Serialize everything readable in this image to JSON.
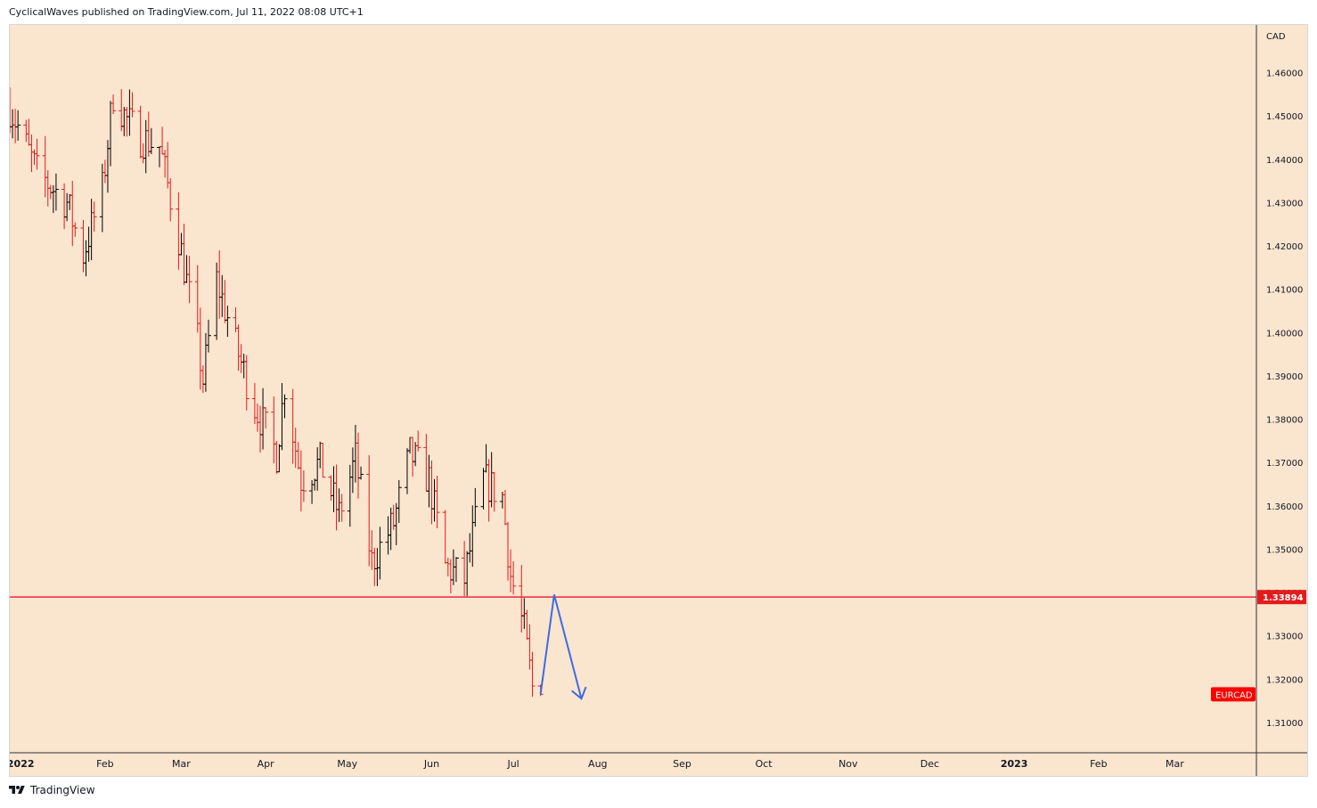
{
  "header": {
    "publisher_line": "CyclicalWaves published on TradingView.com, Jul 11, 2022 08:08 UTC+1"
  },
  "footer": {
    "brand": "TradingView",
    "logo_icon": "tradingview-logo-icon"
  },
  "colors": {
    "background": "#fae5cf",
    "up_bar": "#000000",
    "down_bar": "#e31b1b",
    "support_line": "#f23645",
    "projection": "#3d6be0",
    "price_tag_bg": "#e31b1b",
    "symbol_tag_bg": "#ff0000"
  },
  "chart_data": {
    "type": "ohlc",
    "symbol": "EURCAD",
    "currency": "CAD",
    "x_labels": [
      "2022",
      "Feb",
      "Mar",
      "Apr",
      "May",
      "Jun",
      "Jul",
      "Aug",
      "Sep",
      "Oct",
      "Nov",
      "Dec",
      "2023",
      "Feb",
      "Mar"
    ],
    "x_label_dates": [
      "2022-01-01",
      "2022-02-01",
      "2022-03-01",
      "2022-04-01",
      "2022-05-01",
      "2022-06-01",
      "2022-07-01",
      "2022-08-01",
      "2022-09-01",
      "2022-10-01",
      "2022-11-01",
      "2022-12-01",
      "2023-01-01",
      "2023-02-01",
      "2023-03-01"
    ],
    "bold_x_labels": [
      "2022",
      "2023"
    ],
    "x_range": [
      "2021-12-28",
      "2023-03-31"
    ],
    "y_ticks": [
      "1.31000",
      "1.32000",
      "1.33000",
      "1.34000",
      "1.35000",
      "1.36000",
      "1.37000",
      "1.38000",
      "1.39000",
      "1.40000",
      "1.41000",
      "1.42000",
      "1.43000",
      "1.44000",
      "1.45000",
      "1.46000"
    ],
    "y_tick_values": [
      1.31,
      1.32,
      1.33,
      1.34,
      1.35,
      1.36,
      1.37,
      1.38,
      1.39,
      1.4,
      1.41,
      1.42,
      1.43,
      1.44,
      1.45,
      1.46
    ],
    "ylim": [
      1.303,
      1.471
    ],
    "support_level": {
      "value": 1.33894,
      "label": "1.33894"
    },
    "symbol_tag": {
      "label": "EURCAD",
      "value": 1.3165
    },
    "projection_path": [
      {
        "date": "2022-07-11",
        "price": 1.3165
      },
      {
        "date": "2022-07-16",
        "price": 1.3395
      },
      {
        "date": "2022-07-26",
        "price": 1.3155
      }
    ],
    "anchor_points": [
      {
        "date": "2021-12-28",
        "price": 1.452
      },
      {
        "date": "2022-01-07",
        "price": 1.437
      },
      {
        "date": "2022-01-18",
        "price": 1.43
      },
      {
        "date": "2022-01-24",
        "price": 1.418
      },
      {
        "date": "2022-01-31",
        "price": 1.433
      },
      {
        "date": "2022-02-04",
        "price": 1.455
      },
      {
        "date": "2022-02-09",
        "price": 1.449
      },
      {
        "date": "2022-02-14",
        "price": 1.445
      },
      {
        "date": "2022-02-21",
        "price": 1.443
      },
      {
        "date": "2022-02-28",
        "price": 1.422
      },
      {
        "date": "2022-03-07",
        "price": 1.398
      },
      {
        "date": "2022-03-09",
        "price": 1.389
      },
      {
        "date": "2022-03-14",
        "price": 1.412
      },
      {
        "date": "2022-03-21",
        "price": 1.397
      },
      {
        "date": "2022-03-28",
        "price": 1.383
      },
      {
        "date": "2022-04-05",
        "price": 1.372
      },
      {
        "date": "2022-04-08",
        "price": 1.388
      },
      {
        "date": "2022-04-14",
        "price": 1.366
      },
      {
        "date": "2022-04-21",
        "price": 1.37
      },
      {
        "date": "2022-04-28",
        "price": 1.358
      },
      {
        "date": "2022-05-04",
        "price": 1.371
      },
      {
        "date": "2022-05-10",
        "price": 1.347
      },
      {
        "date": "2022-05-18",
        "price": 1.356
      },
      {
        "date": "2022-05-24",
        "price": 1.372
      },
      {
        "date": "2022-05-31",
        "price": 1.366
      },
      {
        "date": "2022-06-06",
        "price": 1.346
      },
      {
        "date": "2022-06-13",
        "price": 1.343
      },
      {
        "date": "2022-06-20",
        "price": 1.366
      },
      {
        "date": "2022-06-27",
        "price": 1.362
      },
      {
        "date": "2022-06-30",
        "price": 1.344
      },
      {
        "date": "2022-07-05",
        "price": 1.331
      },
      {
        "date": "2022-07-08",
        "price": 1.318
      },
      {
        "date": "2022-07-11",
        "price": 1.3165
      }
    ]
  }
}
